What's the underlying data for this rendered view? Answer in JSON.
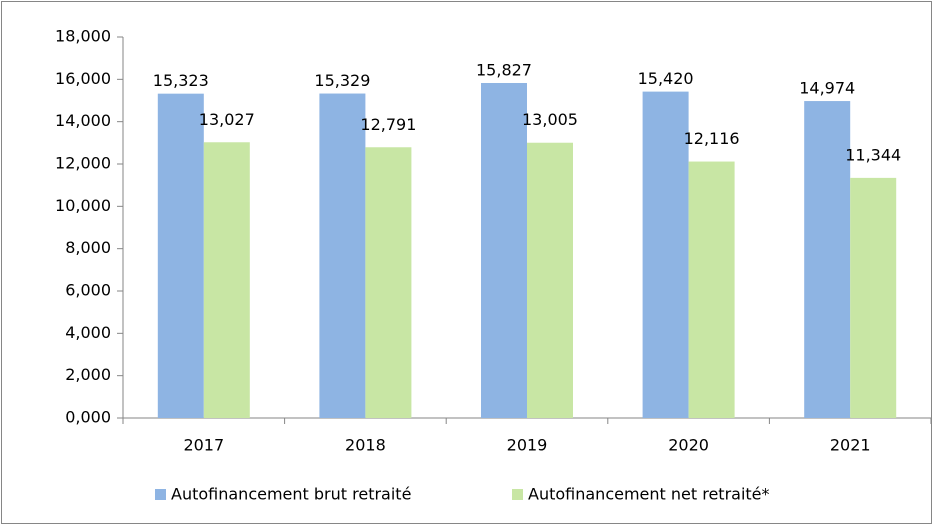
{
  "chart_data": {
    "type": "bar",
    "categories": [
      "2017",
      "2018",
      "2019",
      "2020",
      "2021"
    ],
    "series": [
      {
        "name": "Autofinancement brut retraité",
        "color": "#8eb4e3",
        "values": [
          15323,
          15329,
          15827,
          15420,
          14974
        ],
        "value_labels": [
          "15,323",
          "15,329",
          "15,827",
          "15,420",
          "14,974"
        ]
      },
      {
        "name": "Autofinancement net retraité*",
        "color": "#c8e6a4",
        "values": [
          13027,
          12791,
          13005,
          12116,
          11344
        ],
        "value_labels": [
          "13,027",
          "12,791",
          "13,005",
          "12,116",
          "11,344"
        ]
      }
    ],
    "ylim": [
      0,
      18000
    ],
    "yticks": [
      {
        "value": 0,
        "label": "0,000"
      },
      {
        "value": 2000,
        "label": "2,000"
      },
      {
        "value": 4000,
        "label": "4,000"
      },
      {
        "value": 6000,
        "label": "6,000"
      },
      {
        "value": 8000,
        "label": "8,000"
      },
      {
        "value": 10000,
        "label": "10,000"
      },
      {
        "value": 12000,
        "label": "12,000"
      },
      {
        "value": 14000,
        "label": "14,000"
      },
      {
        "value": 16000,
        "label": "16,000"
      },
      {
        "value": 18000,
        "label": "18,000"
      }
    ],
    "grid": false,
    "legend": "bottom"
  }
}
